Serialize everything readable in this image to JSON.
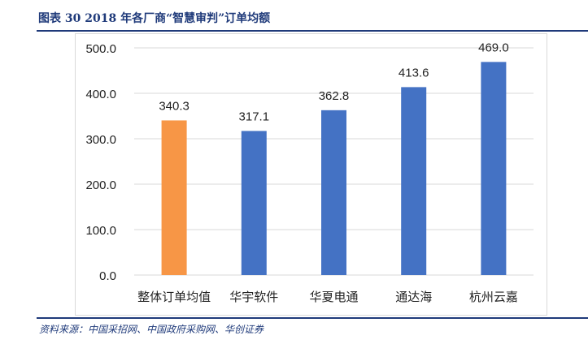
{
  "header": {
    "title": "图表 30   2018 年各厂商“智慧审判”订单均额"
  },
  "footer": {
    "source": "资料来源：中国采招网、中国政府采购网、华创证券"
  },
  "chart_data": {
    "type": "bar",
    "title": "",
    "xlabel": "",
    "ylabel": "",
    "categories": [
      "整体订单均值",
      "华宇软件",
      "华夏电通",
      "通达海",
      "杭州云嘉"
    ],
    "values": [
      340.3,
      317.1,
      362.8,
      413.6,
      469.0
    ],
    "data_labels": [
      "340.3",
      "317.1",
      "362.8",
      "413.6",
      "469.0"
    ],
    "bar_colors": [
      "#F79646",
      "#4472C4",
      "#4472C4",
      "#4472C4",
      "#4472C4"
    ],
    "ylim": [
      0,
      500
    ],
    "yticks": [
      "0.0",
      "100.0",
      "200.0",
      "300.0",
      "400.0",
      "500.0"
    ],
    "grid": true,
    "legend": "none"
  }
}
